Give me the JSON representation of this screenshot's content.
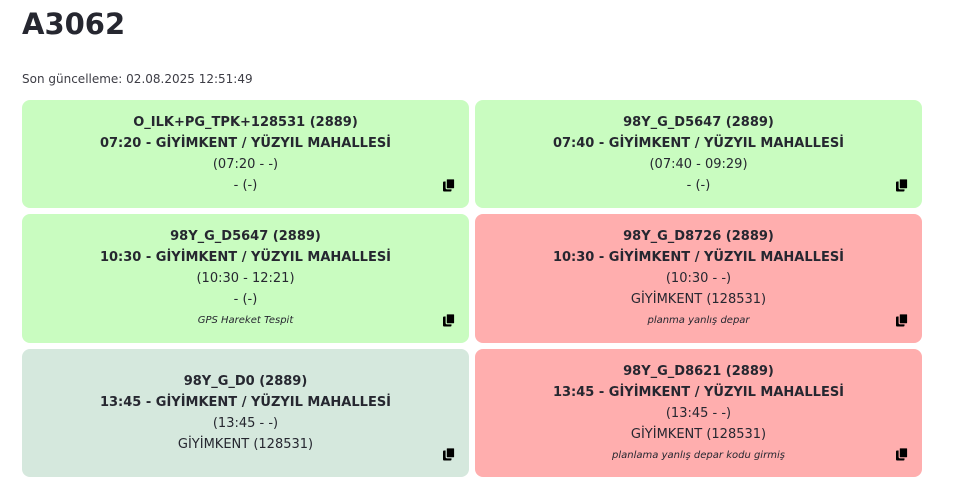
{
  "page": {
    "title": "A3062",
    "updated": "Son güncelleme: 02.08.2025 12:51:49"
  },
  "colors": {
    "green": "#c9fcc0",
    "red": "#ffaeae",
    "gray": "#d5e8dd"
  },
  "cards": [
    {
      "status": "green",
      "line1": "O_ILK+PG_TPK+128531 (2889)",
      "line2": "07:20 - GİYİMKENT / YÜZYIL MAHALLESİ",
      "line3": "(07:20 - -)",
      "line4": "- (-)",
      "note": "",
      "icon": "copy-icon"
    },
    {
      "status": "green",
      "line1": "98Y_G_D5647 (2889)",
      "line2": "07:40 - GİYİMKENT / YÜZYIL MAHALLESİ",
      "line3": "(07:40 - 09:29)",
      "line4": "- (-)",
      "note": "",
      "icon": "copy-icon"
    },
    {
      "status": "green",
      "line1": "98Y_G_D5647 (2889)",
      "line2": "10:30 - GİYİMKENT / YÜZYIL MAHALLESİ",
      "line3": "(10:30 - 12:21)",
      "line4": "- (-)",
      "note": "GPS Hareket Tespit",
      "icon": "copy-icon"
    },
    {
      "status": "red",
      "line1": "98Y_G_D8726 (2889)",
      "line2": "10:30 - GİYİMKENT / YÜZYIL MAHALLESİ",
      "line3": "(10:30 - -)",
      "line4": "GİYİMKENT (128531)",
      "note": "planma yanlış depar",
      "icon": "copy-icon"
    },
    {
      "status": "gray",
      "line1": "98Y_G_D0 (2889)",
      "line2": "13:45 - GİYİMKENT / YÜZYIL MAHALLESİ",
      "line3": "(13:45 - -)",
      "line4": "GİYİMKENT (128531)",
      "note": "",
      "icon": "copy-icon"
    },
    {
      "status": "red",
      "line1": "98Y_G_D8621 (2889)",
      "line2": "13:45 - GİYİMKENT / YÜZYIL MAHALLESİ",
      "line3": "(13:45 - -)",
      "line4": "GİYİMKENT (128531)",
      "note": "planlama yanlış depar kodu girmiş",
      "icon": "copy-icon"
    }
  ]
}
